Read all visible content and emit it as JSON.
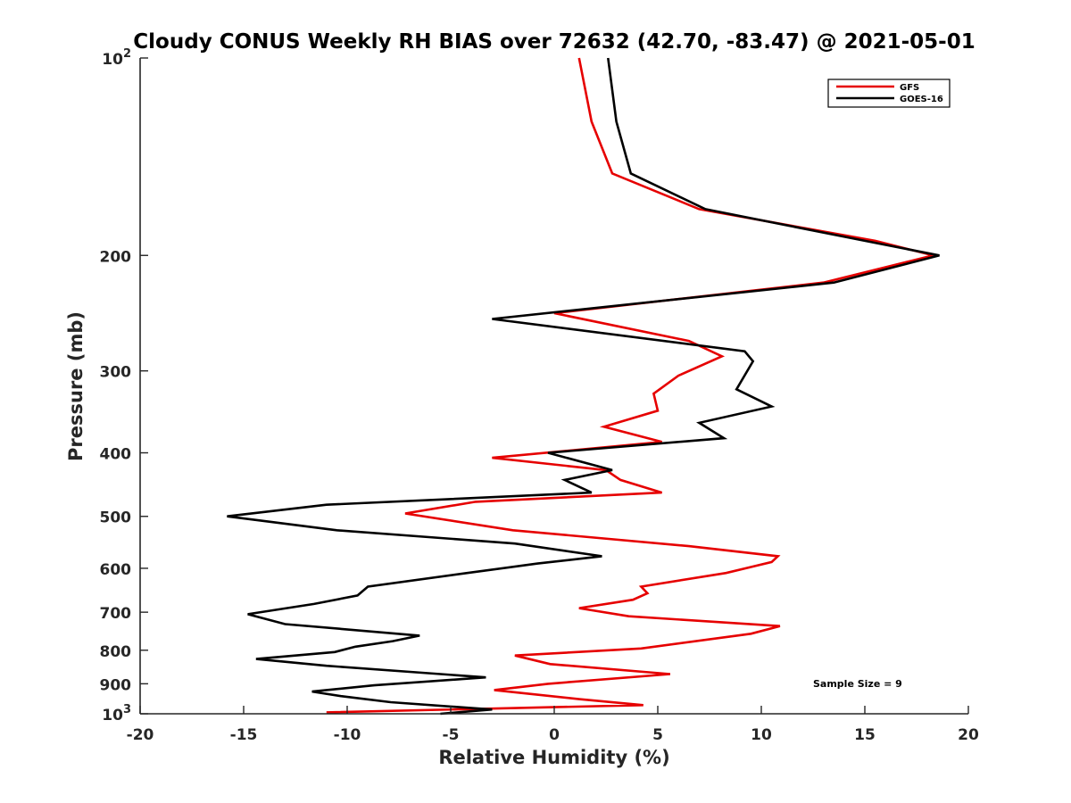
{
  "chart_data": {
    "type": "line",
    "title": "Cloudy CONUS Weekly RH BIAS over 72632 (42.70, -83.47) @ 2021-05-01",
    "xlabel": "Relative Humidity (%)",
    "ylabel": "Pressure (mb)",
    "xlim": [
      -20,
      20
    ],
    "ylim": [
      100,
      1000
    ],
    "y_scale": "log",
    "y_direction": "reversed",
    "x_ticks": [
      "-20",
      "-15",
      "-10",
      "-5",
      "0",
      "5",
      "10",
      "15",
      "20"
    ],
    "x_tick_values": [
      -20,
      -15,
      -10,
      -5,
      0,
      5,
      10,
      15,
      20
    ],
    "y_ticks": [
      {
        "value": 100,
        "base": "10",
        "exp": "2"
      },
      {
        "value": 200,
        "label": "200"
      },
      {
        "value": 300,
        "label": "300"
      },
      {
        "value": 400,
        "label": "400"
      },
      {
        "value": 500,
        "label": "500"
      },
      {
        "value": 600,
        "label": "600"
      },
      {
        "value": 700,
        "label": "700"
      },
      {
        "value": 800,
        "label": "800"
      },
      {
        "value": 900,
        "label": "900"
      },
      {
        "value": 1000,
        "base": "10",
        "exp": "3"
      }
    ],
    "grid": false,
    "legend_position": "top-right",
    "annotation": "Sample Size = 9",
    "series": [
      {
        "name": "GFS",
        "color": "#e60000",
        "points": [
          [
            1.2,
            100
          ],
          [
            1.8,
            125
          ],
          [
            2.8,
            150
          ],
          [
            7,
            170
          ],
          [
            15.5,
            190
          ],
          [
            18.3,
            200
          ],
          [
            13,
            220
          ],
          [
            0,
            245
          ],
          [
            6.5,
            270
          ],
          [
            8.1,
            285
          ],
          [
            6,
            305
          ],
          [
            4.8,
            325
          ],
          [
            5,
            345
          ],
          [
            2.4,
            365
          ],
          [
            5.2,
            385
          ],
          [
            -3,
            407
          ],
          [
            2.5,
            425
          ],
          [
            3.2,
            440
          ],
          [
            5.2,
            460
          ],
          [
            -3.8,
            475
          ],
          [
            -7.2,
            495
          ],
          [
            -2,
            525
          ],
          [
            6.5,
            555
          ],
          [
            10.8,
            575
          ],
          [
            10.5,
            587
          ],
          [
            8.3,
            610
          ],
          [
            4.2,
            640
          ],
          [
            4.5,
            655
          ],
          [
            3.8,
            670
          ],
          [
            1.2,
            690
          ],
          [
            3.6,
            710
          ],
          [
            10.9,
            735
          ],
          [
            9.5,
            755
          ],
          [
            4.2,
            795
          ],
          [
            -1.9,
            815
          ],
          [
            -0.2,
            840
          ],
          [
            5.6,
            870
          ],
          [
            -0.3,
            900
          ],
          [
            -2.9,
            920
          ],
          [
            1.2,
            950
          ],
          [
            4.3,
            970
          ],
          [
            -11,
            995
          ]
        ]
      },
      {
        "name": "GOES-16",
        "color": "#000000",
        "points": [
          [
            2.6,
            100
          ],
          [
            3,
            125
          ],
          [
            3.7,
            150
          ],
          [
            7.3,
            170
          ],
          [
            15,
            190
          ],
          [
            18.6,
            200
          ],
          [
            13.5,
            220
          ],
          [
            -3,
            250
          ],
          [
            9.2,
            280
          ],
          [
            9.6,
            290
          ],
          [
            8.8,
            320
          ],
          [
            10.5,
            340
          ],
          [
            7,
            360
          ],
          [
            8.2,
            380
          ],
          [
            -0.3,
            400
          ],
          [
            2.8,
            425
          ],
          [
            0.5,
            440
          ],
          [
            1.8,
            460
          ],
          [
            -11,
            480
          ],
          [
            -15.8,
            500
          ],
          [
            -10.5,
            525
          ],
          [
            -1.9,
            550
          ],
          [
            2.3,
            575
          ],
          [
            -0.8,
            590
          ],
          [
            -4.2,
            610
          ],
          [
            -9,
            640
          ],
          [
            -9.5,
            660
          ],
          [
            -11.6,
            680
          ],
          [
            -14.8,
            705
          ],
          [
            -13,
            730
          ],
          [
            -6.5,
            760
          ],
          [
            -7.8,
            775
          ],
          [
            -9.6,
            790
          ],
          [
            -10.6,
            805
          ],
          [
            -14.4,
            825
          ],
          [
            -11,
            845
          ],
          [
            -3.3,
            880
          ],
          [
            -8.7,
            905
          ],
          [
            -11.7,
            925
          ],
          [
            -10.3,
            940
          ],
          [
            -7.9,
            960
          ],
          [
            -3,
            985
          ],
          [
            -5.5,
            1000
          ]
        ]
      }
    ]
  }
}
